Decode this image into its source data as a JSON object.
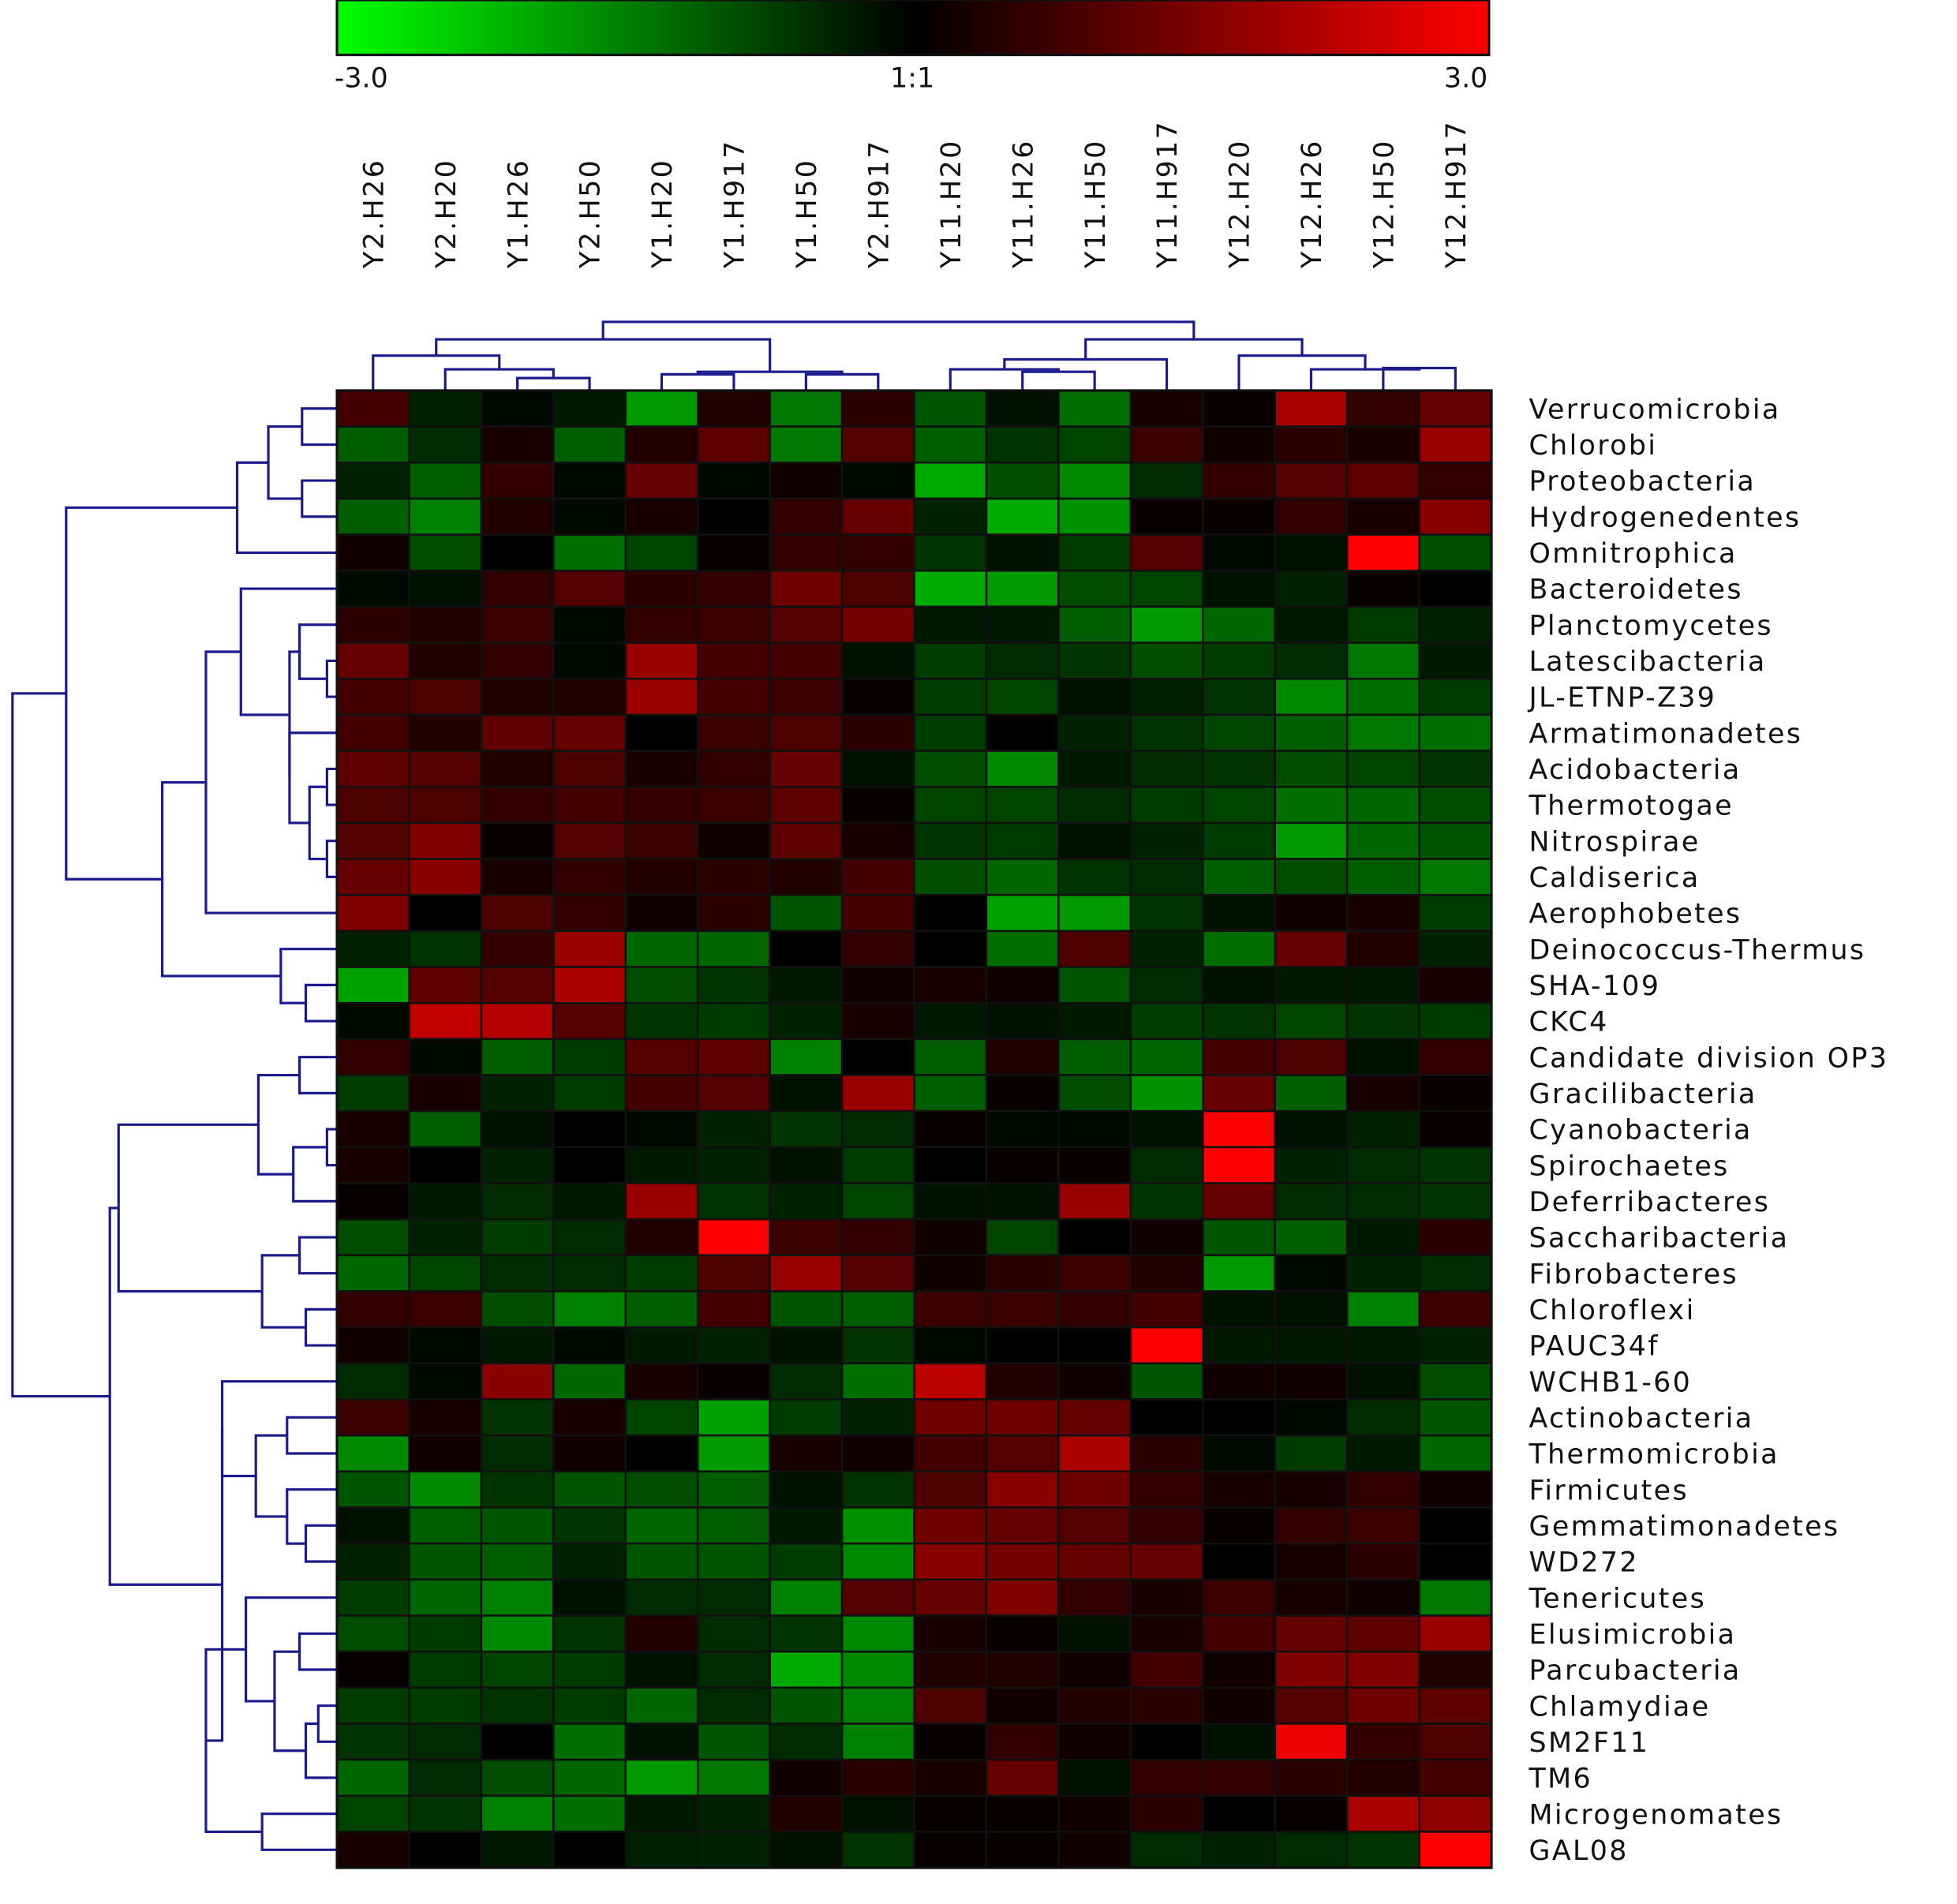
{
  "chart_data": {
    "type": "heatmap",
    "title": "",
    "colorbar": {
      "min": -3.0,
      "max": 3.0,
      "tick_labels": [
        "-3.0",
        "1:1",
        "3.0"
      ],
      "low_color": "#00ff00",
      "mid_color": "#000000",
      "high_color": "#ff0000"
    },
    "columns": [
      "Y2.H26",
      "Y2.H20",
      "Y1.H26",
      "Y2.H50",
      "Y1.H20",
      "Y1.H917",
      "Y1.H50",
      "Y2.H917",
      "Y11.H20",
      "Y11.H26",
      "Y11.H50",
      "Y11.H917",
      "Y12.H20",
      "Y12.H26",
      "Y12.H50",
      "Y12.H917"
    ],
    "rows": [
      "Verrucomicrobia",
      "Chlorobi",
      "Proteobacteria",
      "Hydrogenedentes",
      "Omnitrophica",
      "Bacteroidetes",
      "Planctomycetes",
      "Latescibacteria",
      "JL-ETNP-Z39",
      "Armatimonadetes",
      "Acidobacteria",
      "Thermotogae",
      "Nitrospirae",
      "Caldiserica",
      "Aerophobetes",
      "Deinococcus-Thermus",
      "SHA-109",
      "CKC4",
      "Candidate division OP3",
      "Gracilibacteria",
      "Cyanobacteria",
      "Spirochaetes",
      "Deferribacteres",
      "Saccharibacteria",
      "Fibrobacteres",
      "Chloroflexi",
      "PAUC34f",
      "WCHB1-60",
      "Actinobacteria",
      "Thermomicrobia",
      "Firmicutes",
      "Gemmatimonadetes",
      "WD272",
      "Tenericutes",
      "Elusimicrobia",
      "Parcubacteria",
      "Chlamydiae",
      "SM2F11",
      "TM6",
      "Microgenomates",
      "GAL08"
    ],
    "values": [
      [
        0.8,
        -0.4,
        -0.1,
        -0.3,
        -1.8,
        0.4,
        -1.4,
        0.5,
        -1.0,
        -0.2,
        -1.3,
        0.3,
        0.1,
        2.0,
        0.6,
        1.2
      ],
      [
        -1.1,
        -0.5,
        0.3,
        -1.1,
        0.4,
        1.1,
        -1.4,
        1.0,
        -1.1,
        -0.6,
        -0.8,
        0.7,
        0.2,
        0.5,
        0.3,
        1.8
      ],
      [
        -0.4,
        -1.1,
        0.6,
        -0.1,
        1.2,
        -0.1,
        0.2,
        -0.1,
        -2.0,
        -0.9,
        -1.6,
        -0.5,
        0.6,
        1.0,
        1.1,
        0.6
      ],
      [
        -1.1,
        -1.5,
        0.4,
        -0.1,
        0.3,
        0.0,
        0.6,
        1.2,
        -0.4,
        -2.0,
        -1.7,
        0.1,
        0.1,
        0.6,
        0.3,
        1.6
      ],
      [
        0.2,
        -0.9,
        0.0,
        -1.3,
        -0.8,
        0.1,
        0.6,
        0.6,
        -0.6,
        -0.2,
        -0.7,
        1.0,
        -0.1,
        -0.2,
        3.0,
        -0.9
      ],
      [
        -0.1,
        -0.2,
        0.6,
        1.0,
        0.5,
        0.6,
        1.3,
        0.9,
        -2.0,
        -1.8,
        -0.9,
        -0.8,
        -0.2,
        -0.4,
        0.1,
        0.0
      ],
      [
        0.5,
        0.4,
        0.7,
        -0.1,
        0.6,
        0.7,
        1.0,
        1.4,
        -0.3,
        -0.3,
        -1.1,
        -1.8,
        -1.2,
        -0.3,
        -0.7,
        -0.4
      ],
      [
        1.2,
        0.4,
        0.6,
        -0.1,
        1.8,
        0.8,
        0.8,
        -0.2,
        -0.7,
        -0.5,
        -0.6,
        -0.9,
        -0.7,
        -0.5,
        -1.4,
        -0.3
      ],
      [
        0.8,
        0.9,
        0.4,
        0.4,
        1.8,
        0.8,
        0.7,
        0.1,
        -0.7,
        -0.8,
        -0.2,
        -0.4,
        -0.6,
        -1.6,
        -1.3,
        -0.7
      ],
      [
        0.8,
        0.4,
        1.1,
        1.2,
        0.0,
        0.7,
        0.9,
        0.5,
        -0.7,
        0.0,
        -0.4,
        -0.6,
        -0.8,
        -1.1,
        -1.4,
        -1.3
      ],
      [
        1.1,
        1.0,
        0.4,
        0.9,
        0.3,
        0.6,
        1.2,
        -0.2,
        -0.9,
        -1.6,
        -0.3,
        -0.5,
        -0.6,
        -0.9,
        -0.8,
        -0.6
      ],
      [
        0.9,
        0.9,
        0.6,
        0.8,
        0.6,
        0.7,
        1.1,
        0.1,
        -0.8,
        -0.8,
        -0.5,
        -0.7,
        -0.8,
        -1.3,
        -1.2,
        -0.9
      ],
      [
        1.0,
        1.5,
        0.1,
        1.0,
        0.7,
        0.2,
        1.1,
        0.3,
        -0.6,
        -0.7,
        -0.2,
        -0.4,
        -0.7,
        -1.8,
        -1.2,
        -1.0
      ],
      [
        1.2,
        1.6,
        0.3,
        0.6,
        0.4,
        0.5,
        0.4,
        0.8,
        -0.9,
        -1.2,
        -0.6,
        -0.5,
        -1.1,
        -0.9,
        -1.1,
        -1.4
      ],
      [
        1.5,
        0.0,
        0.9,
        0.6,
        0.2,
        0.5,
        -1.0,
        0.8,
        0.0,
        -1.9,
        -1.8,
        -0.6,
        -0.2,
        0.2,
        0.3,
        -0.7
      ],
      [
        -0.4,
        -0.6,
        0.6,
        1.8,
        -1.2,
        -1.2,
        0.0,
        0.6,
        0.0,
        -1.3,
        0.9,
        -0.4,
        -1.3,
        1.2,
        0.4,
        -0.4
      ],
      [
        -1.9,
        1.1,
        1.0,
        2.0,
        -0.9,
        -0.6,
        -0.3,
        0.2,
        0.3,
        0.2,
        -1.0,
        -0.5,
        -0.2,
        -0.3,
        -0.3,
        0.3
      ],
      [
        -0.1,
        2.3,
        2.1,
        1.0,
        -0.6,
        -0.7,
        -0.4,
        0.3,
        -0.3,
        -0.2,
        -0.3,
        -0.7,
        -0.6,
        -0.8,
        -0.6,
        -0.7
      ],
      [
        0.6,
        -0.1,
        -1.1,
        -0.7,
        1.0,
        1.1,
        -1.5,
        0.0,
        -1.1,
        0.4,
        -1.1,
        -1.2,
        0.8,
        0.9,
        -0.2,
        0.6
      ],
      [
        -0.7,
        0.3,
        -0.4,
        -0.7,
        0.8,
        1.0,
        -0.2,
        1.8,
        -1.1,
        0.1,
        -0.9,
        -1.7,
        1.2,
        -1.1,
        0.3,
        0.1
      ],
      [
        0.3,
        -1.1,
        -0.2,
        0.0,
        -0.1,
        -0.4,
        -0.6,
        -0.5,
        0.1,
        -0.1,
        -0.1,
        -0.2,
        3.0,
        -0.2,
        -0.4,
        0.1
      ],
      [
        0.3,
        0.0,
        -0.4,
        0.0,
        -0.3,
        -0.4,
        -0.2,
        -0.7,
        0.0,
        0.1,
        0.1,
        -0.5,
        3.0,
        -0.4,
        -0.5,
        -0.6
      ],
      [
        0.1,
        -0.3,
        -0.5,
        -0.3,
        1.8,
        -0.6,
        -0.4,
        -0.8,
        -0.2,
        -0.2,
        1.8,
        -0.6,
        1.2,
        -0.5,
        -0.5,
        -0.6
      ],
      [
        -0.9,
        -0.4,
        -0.7,
        -0.5,
        0.4,
        3.0,
        0.7,
        0.6,
        0.2,
        -0.8,
        0.0,
        0.2,
        -1.0,
        -1.1,
        -0.3,
        0.5
      ],
      [
        -1.2,
        -0.8,
        -0.5,
        -0.5,
        -0.7,
        0.9,
        1.8,
        1.0,
        0.2,
        0.5,
        0.7,
        0.4,
        -1.8,
        -0.1,
        -0.4,
        -0.5
      ],
      [
        0.6,
        0.7,
        -0.9,
        -1.5,
        -1.1,
        0.8,
        -1.0,
        -1.1,
        0.7,
        0.7,
        0.6,
        0.8,
        -0.2,
        -0.2,
        -1.5,
        0.7
      ],
      [
        0.2,
        -0.1,
        -0.3,
        -0.1,
        -0.3,
        -0.4,
        -0.2,
        -0.6,
        -0.1,
        0.0,
        0.0,
        3.0,
        -0.3,
        -0.3,
        -0.3,
        -0.4
      ],
      [
        -0.5,
        -0.1,
        1.6,
        -1.2,
        0.3,
        0.1,
        -0.5,
        -1.3,
        2.2,
        0.4,
        0.2,
        -1.0,
        0.2,
        0.2,
        -0.2,
        -0.9
      ],
      [
        0.7,
        0.3,
        -0.6,
        0.3,
        -0.8,
        -1.9,
        -0.7,
        -0.4,
        1.3,
        1.3,
        1.2,
        0.0,
        0.0,
        -0.1,
        -0.5,
        -1.0
      ],
      [
        -1.6,
        0.2,
        -0.5,
        0.2,
        0.0,
        -1.8,
        0.3,
        0.2,
        0.8,
        1.0,
        2.0,
        0.5,
        -0.1,
        -0.7,
        -0.3,
        -1.2
      ],
      [
        -1.0,
        -1.6,
        -0.6,
        -1.0,
        -0.9,
        -1.1,
        -0.2,
        -0.6,
        0.9,
        1.6,
        1.3,
        0.6,
        0.3,
        0.3,
        0.6,
        0.2
      ],
      [
        -0.2,
        -1.1,
        -1.0,
        -0.6,
        -1.2,
        -1.1,
        -0.3,
        -1.7,
        1.3,
        1.2,
        1.0,
        0.6,
        0.1,
        0.6,
        0.7,
        0.0
      ],
      [
        -0.4,
        -1.0,
        -1.1,
        -0.4,
        -1.0,
        -1.0,
        -0.7,
        -1.6,
        1.6,
        1.4,
        1.2,
        1.2,
        0.0,
        0.3,
        0.5,
        0.0
      ],
      [
        -0.7,
        -1.2,
        -1.5,
        -0.2,
        -0.5,
        -0.5,
        -1.5,
        1.0,
        1.2,
        1.5,
        0.6,
        0.3,
        0.7,
        0.3,
        0.2,
        -1.4
      ],
      [
        -0.9,
        -0.7,
        -1.6,
        -0.6,
        0.4,
        -0.5,
        -0.6,
        -1.6,
        0.3,
        0.1,
        -0.2,
        0.3,
        0.8,
        1.2,
        1.1,
        1.8
      ],
      [
        0.1,
        -0.7,
        -0.8,
        -0.7,
        -0.2,
        -0.5,
        -2.0,
        -1.6,
        0.4,
        0.4,
        0.2,
        0.8,
        0.2,
        1.5,
        1.5,
        0.4
      ],
      [
        -0.7,
        -0.7,
        -0.6,
        -0.7,
        -1.2,
        -0.5,
        -1.0,
        -1.5,
        0.9,
        0.2,
        0.4,
        0.5,
        0.2,
        1.0,
        1.3,
        1.1
      ],
      [
        -0.6,
        -0.5,
        0.0,
        -1.3,
        -0.2,
        -1.0,
        -0.5,
        -1.5,
        0.1,
        0.6,
        0.2,
        0.0,
        -0.2,
        2.8,
        0.6,
        0.9
      ],
      [
        -1.2,
        -0.5,
        -0.9,
        -1.2,
        -1.8,
        -1.4,
        0.2,
        0.5,
        0.3,
        1.2,
        -0.2,
        0.6,
        0.6,
        0.5,
        0.4,
        0.8
      ],
      [
        -0.8,
        -0.6,
        -1.5,
        -1.3,
        -0.3,
        -0.4,
        0.4,
        -0.2,
        0.1,
        0.1,
        0.2,
        0.5,
        0.0,
        0.1,
        2.0,
        1.7
      ],
      [
        0.3,
        0.0,
        -0.3,
        0.0,
        -0.4,
        -0.4,
        -0.2,
        -0.6,
        0.1,
        0.1,
        0.2,
        -0.5,
        -0.4,
        -0.5,
        -0.6,
        3.0
      ]
    ],
    "row_dendrogram": true,
    "column_dendrogram": true,
    "dendrogram_color": "#1a1a8c"
  }
}
